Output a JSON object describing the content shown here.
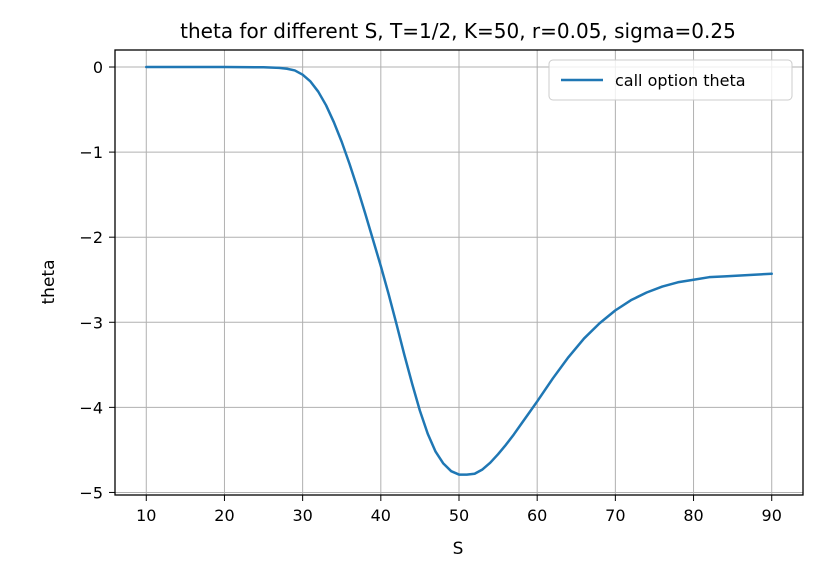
{
  "chart_data": {
    "type": "line",
    "title": "theta for different S, T=1/2, K=50, r=0.05, sigma=0.25",
    "xlabel": "S",
    "ylabel": "theta",
    "xlim": [
      6,
      94
    ],
    "ylim": [
      -5.03,
      0.2
    ],
    "xticks": [
      10,
      20,
      30,
      40,
      50,
      60,
      70,
      80,
      90
    ],
    "xtick_labels": [
      "10",
      "20",
      "30",
      "40",
      "50",
      "60",
      "70",
      "80",
      "90"
    ],
    "yticks": [
      0,
      -1,
      -2,
      -3,
      -4,
      -5
    ],
    "ytick_labels": [
      "0",
      "−1",
      "−2",
      "−3",
      "−4",
      "−5"
    ],
    "grid": true,
    "legend_position": "upper right",
    "series": [
      {
        "name": "call option theta",
        "color": "#1f77b4",
        "x": [
          10,
          20,
          25,
          27,
          28,
          29,
          30,
          31,
          32,
          33,
          34,
          35,
          36,
          37,
          38,
          39,
          40,
          41,
          42,
          43,
          44,
          45,
          46,
          47,
          48,
          49,
          50,
          51,
          52,
          53,
          54,
          55,
          56,
          57,
          58,
          59,
          60,
          62,
          64,
          66,
          68,
          70,
          72,
          74,
          76,
          78,
          80,
          82,
          84,
          86,
          88,
          90
        ],
        "y": [
          0.0,
          0.0,
          -0.003,
          -0.01,
          -0.02,
          -0.04,
          -0.09,
          -0.17,
          -0.29,
          -0.45,
          -0.65,
          -0.88,
          -1.14,
          -1.42,
          -1.72,
          -2.03,
          -2.34,
          -2.67,
          -3.02,
          -3.38,
          -3.72,
          -4.04,
          -4.31,
          -4.52,
          -4.66,
          -4.75,
          -4.79,
          -4.79,
          -4.78,
          -4.73,
          -4.65,
          -4.55,
          -4.44,
          -4.32,
          -4.19,
          -4.06,
          -3.93,
          -3.66,
          -3.41,
          -3.19,
          -3.01,
          -2.86,
          -2.74,
          -2.65,
          -2.58,
          -2.53,
          -2.5,
          -2.47,
          -2.46,
          -2.45,
          -2.44,
          -2.43
        ]
      }
    ]
  }
}
